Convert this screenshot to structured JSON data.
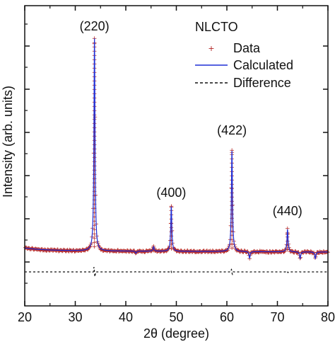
{
  "chart_data": {
    "type": "line",
    "xlabel": "2θ (degree)",
    "ylabel": "Intensity (arb. units)",
    "xlim": [
      20,
      80
    ],
    "x_ticks": [
      20,
      30,
      40,
      50,
      60,
      70,
      80
    ],
    "y_tick_labels": "none",
    "grid": false,
    "legend": {
      "placement": "top-right",
      "title": "NLCTO",
      "entries": [
        {
          "label": "Data",
          "style": "markers",
          "color": "#b22222"
        },
        {
          "label": "Calculated",
          "style": "solid-line",
          "color": "#1f2fd6"
        },
        {
          "label": "Difference",
          "style": "dashed-line",
          "color": "#111111"
        }
      ]
    },
    "peak_labels": [
      {
        "text": "(220)",
        "x": 33.8
      },
      {
        "text": "(400)",
        "x": 49.0
      },
      {
        "text": "(422)",
        "x": 61.0
      },
      {
        "text": "(440)",
        "x": 72.0
      }
    ],
    "baseline": 0.05,
    "peaks": [
      {
        "x": 33.8,
        "intensity": 1.0
      },
      {
        "x": 38.2,
        "intensity": 0.05
      },
      {
        "x": 42.0,
        "intensity": 0.04
      },
      {
        "x": 45.5,
        "intensity": 0.07
      },
      {
        "x": 49.0,
        "intensity": 0.25
      },
      {
        "x": 61.0,
        "intensity": 0.5
      },
      {
        "x": 64.5,
        "intensity": 0.02
      },
      {
        "x": 72.0,
        "intensity": 0.15
      },
      {
        "x": 74.5,
        "intensity": 0.02
      },
      {
        "x": 77.5,
        "intensity": 0.02
      }
    ],
    "series": [
      {
        "name": "Data",
        "color": "#b22222"
      },
      {
        "name": "Calculated",
        "color": "#1f2fd6"
      },
      {
        "name": "Difference",
        "color": "#111111"
      }
    ]
  }
}
